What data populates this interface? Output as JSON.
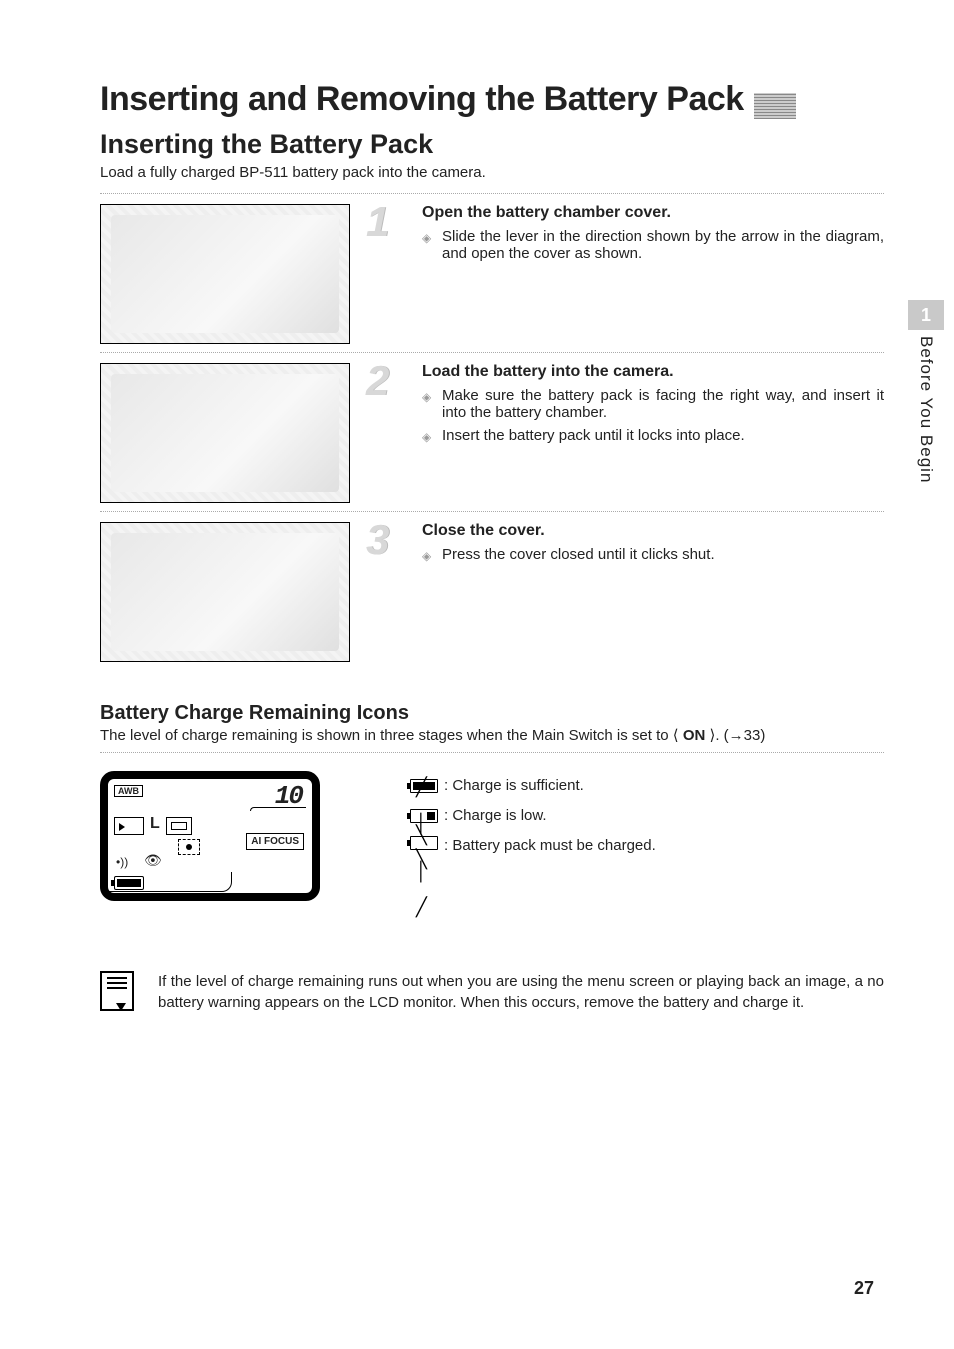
{
  "page": {
    "main_title": "Inserting and Removing the Battery Pack",
    "sub_title": "Inserting the Battery Pack",
    "intro": "Load a fully charged BP-511 battery pack into the camera.",
    "page_number": "27"
  },
  "side_tab": {
    "number": "1",
    "label": "Before You Begin"
  },
  "steps": [
    {
      "num": "1",
      "heading": "Open the battery chamber cover.",
      "bullets": [
        "Slide the lever in the direction shown by the arrow in the diagram, and open the cover as shown."
      ]
    },
    {
      "num": "2",
      "heading": "Load the battery into the camera.",
      "bullets": [
        "Make sure the battery pack is facing the right way, and insert it into the battery chamber.",
        "Insert the battery pack until it locks into place."
      ]
    },
    {
      "num": "3",
      "heading": "Close the cover.",
      "bullets": [
        "Press the cover closed until it clicks shut."
      ]
    }
  ],
  "battery_section": {
    "heading": "Battery Charge Remaining Icons",
    "intro_pre": "The level of charge remaining is shown in three stages when the Main Switch is set to ⟨ ",
    "intro_bold": "ON",
    "intro_post": " ⟩. (→33)",
    "lcd": {
      "awb": "AWB",
      "shots": "10",
      "size": "L",
      "af_mode": "AI FOCUS",
      "beep_glyph": "•))",
      "eye_glyph": "👁"
    },
    "levels": [
      ": Charge is sufficient.",
      ": Charge is low.",
      ": Battery pack must be charged."
    ]
  },
  "note": "If the level of charge remaining runs out when you are using the menu screen or playing back an image, a no battery warning appears on the LCD monitor. When this occurs, remove the battery and charge it."
}
